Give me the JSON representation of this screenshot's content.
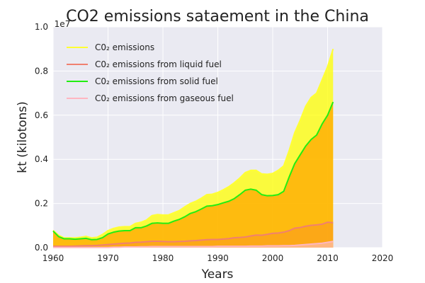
{
  "chart_data": {
    "type": "area",
    "title": "CO2 emissions sataement in the China",
    "xlabel": "Years",
    "ylabel": "kt (kilotons)",
    "y_offset_label": "1e7",
    "xlim": [
      1960,
      2020
    ],
    "ylim": [
      0,
      1.0
    ],
    "xticks": [
      "1960",
      "1970",
      "1980",
      "1990",
      "2000",
      "2010",
      "2020"
    ],
    "yticks": [
      "0.0",
      "0.2",
      "0.4",
      "0.6",
      "0.8",
      "1.0"
    ],
    "grid": true,
    "legend_position": "upper-left",
    "x": [
      1960,
      1961,
      1962,
      1963,
      1964,
      1965,
      1966,
      1967,
      1968,
      1969,
      1970,
      1971,
      1972,
      1973,
      1974,
      1975,
      1976,
      1977,
      1978,
      1979,
      1980,
      1981,
      1982,
      1983,
      1984,
      1985,
      1986,
      1987,
      1988,
      1989,
      1990,
      1991,
      1992,
      1993,
      1994,
      1995,
      1996,
      1997,
      1998,
      1999,
      2000,
      2001,
      2002,
      2003,
      2004,
      2005,
      2006,
      2007,
      2008,
      2009,
      2010,
      2011
    ],
    "series": [
      {
        "name": "C0₂ emissions",
        "line_color": "#ffff33",
        "fill_color": "#ffff00",
        "values": [
          0.078,
          0.056,
          0.044,
          0.044,
          0.044,
          0.047,
          0.051,
          0.044,
          0.047,
          0.06,
          0.077,
          0.087,
          0.093,
          0.095,
          0.095,
          0.11,
          0.115,
          0.125,
          0.145,
          0.15,
          0.148,
          0.148,
          0.158,
          0.168,
          0.185,
          0.2,
          0.21,
          0.224,
          0.24,
          0.242,
          0.25,
          0.262,
          0.276,
          0.294,
          0.315,
          0.34,
          0.35,
          0.35,
          0.334,
          0.332,
          0.336,
          0.35,
          0.37,
          0.44,
          0.52,
          0.577,
          0.64,
          0.68,
          0.7,
          0.76,
          0.82,
          0.9
        ]
      },
      {
        "name": "C0₂ emissions from liquid fuel",
        "line_color": "#f08070",
        "fill_color": "#f08070",
        "values": [
          0.006,
          0.006,
          0.006,
          0.006,
          0.007,
          0.008,
          0.009,
          0.009,
          0.01,
          0.012,
          0.014,
          0.016,
          0.018,
          0.02,
          0.021,
          0.024,
          0.025,
          0.027,
          0.029,
          0.029,
          0.028,
          0.027,
          0.027,
          0.028,
          0.029,
          0.031,
          0.032,
          0.034,
          0.036,
          0.037,
          0.037,
          0.039,
          0.041,
          0.045,
          0.046,
          0.048,
          0.053,
          0.057,
          0.056,
          0.06,
          0.065,
          0.066,
          0.07,
          0.077,
          0.088,
          0.091,
          0.097,
          0.101,
          0.103,
          0.106,
          0.115,
          0.113
        ]
      },
      {
        "name": "C0₂ emissions from solid fuel",
        "line_color": "#22ee11",
        "fill_color": "#ffa500",
        "values": [
          0.075,
          0.05,
          0.04,
          0.04,
          0.038,
          0.04,
          0.042,
          0.036,
          0.037,
          0.045,
          0.062,
          0.07,
          0.075,
          0.077,
          0.077,
          0.09,
          0.09,
          0.098,
          0.11,
          0.112,
          0.11,
          0.11,
          0.12,
          0.128,
          0.14,
          0.155,
          0.163,
          0.175,
          0.188,
          0.19,
          0.195,
          0.203,
          0.21,
          0.222,
          0.24,
          0.26,
          0.265,
          0.26,
          0.24,
          0.235,
          0.236,
          0.24,
          0.255,
          0.32,
          0.38,
          0.42,
          0.46,
          0.49,
          0.51,
          0.56,
          0.6,
          0.66
        ]
      },
      {
        "name": "C0₂ emissions from gaseous fuel",
        "line_color": "#ffb6c1",
        "fill_color": "#ffc0cb",
        "values": [
          0.001,
          0.001,
          0.001,
          0.001,
          0.001,
          0.001,
          0.001,
          0.001,
          0.001,
          0.001,
          0.001,
          0.002,
          0.002,
          0.003,
          0.003,
          0.003,
          0.004,
          0.004,
          0.005,
          0.005,
          0.005,
          0.005,
          0.005,
          0.005,
          0.005,
          0.005,
          0.005,
          0.005,
          0.005,
          0.005,
          0.006,
          0.006,
          0.006,
          0.006,
          0.006,
          0.006,
          0.007,
          0.007,
          0.007,
          0.008,
          0.008,
          0.008,
          0.009,
          0.009,
          0.01,
          0.012,
          0.014,
          0.016,
          0.018,
          0.02,
          0.024,
          0.028
        ]
      }
    ]
  }
}
